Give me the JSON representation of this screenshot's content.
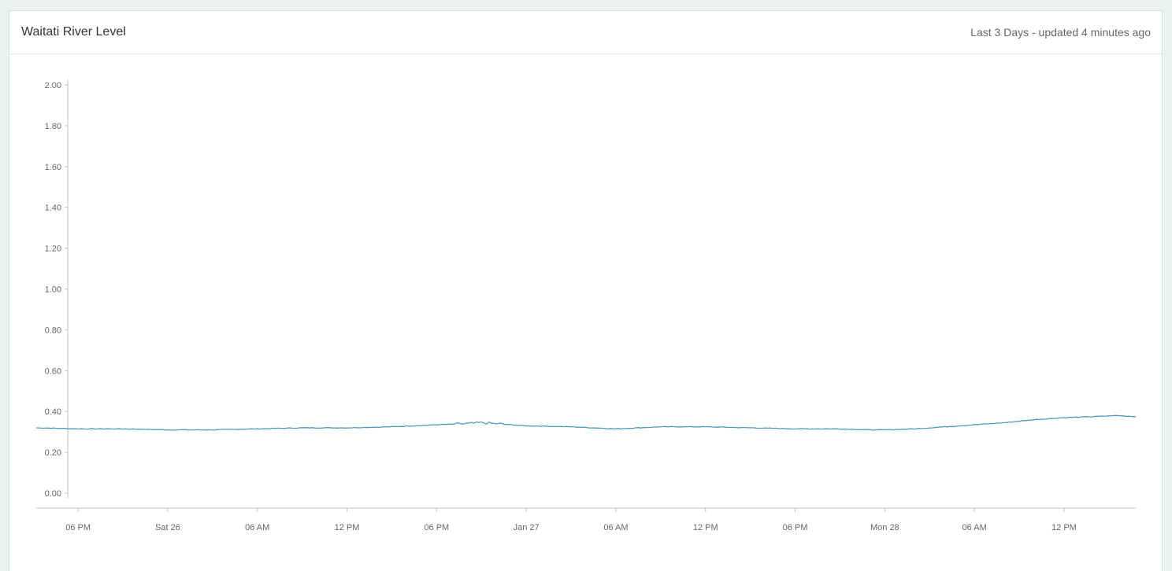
{
  "panel": {
    "title": "Waitati River Level",
    "subtitle": "Last 3 Days - updated 4 minutes ago"
  },
  "colors": {
    "line": "#4a9cc0",
    "axis": "#bfc5c8",
    "tick_text": "#666666"
  },
  "chart_data": {
    "type": "line",
    "title": "",
    "xlabel": "",
    "ylabel": "",
    "grid": false,
    "ylim": [
      0,
      2.0
    ],
    "xlim_hours": [
      -8.8,
      64.8
    ],
    "y_ticks": [
      "0.00",
      "0.20",
      "0.40",
      "0.60",
      "0.80",
      "1.00",
      "1.20",
      "1.40",
      "1.60",
      "1.80",
      "2.00"
    ],
    "x_ticks": [
      {
        "hour": -6,
        "label": "06 PM"
      },
      {
        "hour": 0,
        "label": "Sat 26"
      },
      {
        "hour": 6,
        "label": "06 AM"
      },
      {
        "hour": 12,
        "label": "12 PM"
      },
      {
        "hour": 18,
        "label": "06 PM"
      },
      {
        "hour": 24,
        "label": "Jan 27"
      },
      {
        "hour": 30,
        "label": "06 AM"
      },
      {
        "hour": 36,
        "label": "12 PM"
      },
      {
        "hour": 42,
        "label": "06 PM"
      },
      {
        "hour": 48,
        "label": "Mon 28"
      },
      {
        "hour": 54,
        "label": "06 AM"
      },
      {
        "hour": 60,
        "label": "12 PM"
      }
    ],
    "series": [
      {
        "x": [
          -8.8,
          -6.0,
          -3.0,
          0.0,
          3.0,
          6.0,
          9.0,
          12.0,
          15.0,
          18.0,
          20.0,
          21.0,
          22.0,
          24.0,
          27.0,
          30.0,
          33.0,
          36.0,
          39.0,
          42.0,
          45.0,
          47.0,
          48.0,
          50.0,
          52.0,
          54.0,
          56.0,
          58.0,
          60.0,
          62.0,
          63.5,
          64.8
        ],
        "y": [
          0.32,
          0.315,
          0.315,
          0.31,
          0.31,
          0.315,
          0.32,
          0.32,
          0.325,
          0.335,
          0.34,
          0.345,
          0.34,
          0.33,
          0.325,
          0.315,
          0.325,
          0.325,
          0.32,
          0.315,
          0.315,
          0.31,
          0.31,
          0.315,
          0.325,
          0.335,
          0.345,
          0.36,
          0.37,
          0.375,
          0.38,
          0.375
        ]
      }
    ]
  }
}
